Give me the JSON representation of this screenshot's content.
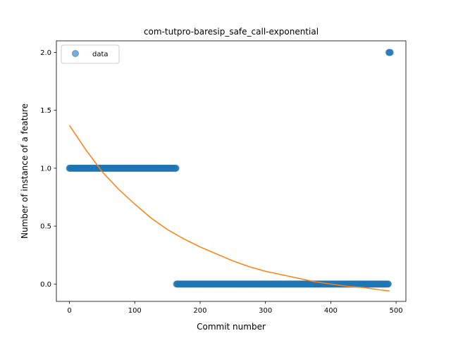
{
  "chart_data": {
    "type": "scatter",
    "title": "com-tutpro-baresip_safe_call-exponential",
    "xlabel": "Commit number",
    "ylabel": "Number of instance of a feature",
    "xlim": [
      -20,
      515
    ],
    "ylim": [
      -0.15,
      2.1
    ],
    "xticks": [
      0,
      100,
      200,
      300,
      400,
      500
    ],
    "xtick_labels": [
      "0",
      "100",
      "200",
      "300",
      "400",
      "500"
    ],
    "yticks": [
      0.0,
      0.5,
      1.0,
      1.5,
      2.0
    ],
    "ytick_labels": [
      "0.0",
      "0.5",
      "1.0",
      "1.5",
      "2.0"
    ],
    "grid": false,
    "legend_position": "top-left",
    "colors": {
      "data": "#1f77b4",
      "fit": "#ff7f0e"
    },
    "series": [
      {
        "name": "data",
        "kind": "scatter",
        "segments": [
          {
            "x_start": 0,
            "x_end": 163,
            "y": 1.0
          },
          {
            "x_start": 164,
            "x_end": 488,
            "y": 0.0
          },
          {
            "x_start": 489,
            "x_end": 491,
            "y": 2.0
          }
        ]
      },
      {
        "kind": "line",
        "x": [
          0,
          25,
          50,
          75,
          100,
          125,
          150,
          175,
          200,
          225,
          250,
          275,
          300,
          325,
          350,
          375,
          400,
          425,
          450,
          475,
          490
        ],
        "y": [
          1.37,
          1.16,
          0.97,
          0.82,
          0.69,
          0.57,
          0.47,
          0.39,
          0.32,
          0.26,
          0.2,
          0.15,
          0.11,
          0.08,
          0.05,
          0.02,
          0.0,
          -0.02,
          -0.03,
          -0.05,
          -0.06
        ]
      }
    ]
  }
}
